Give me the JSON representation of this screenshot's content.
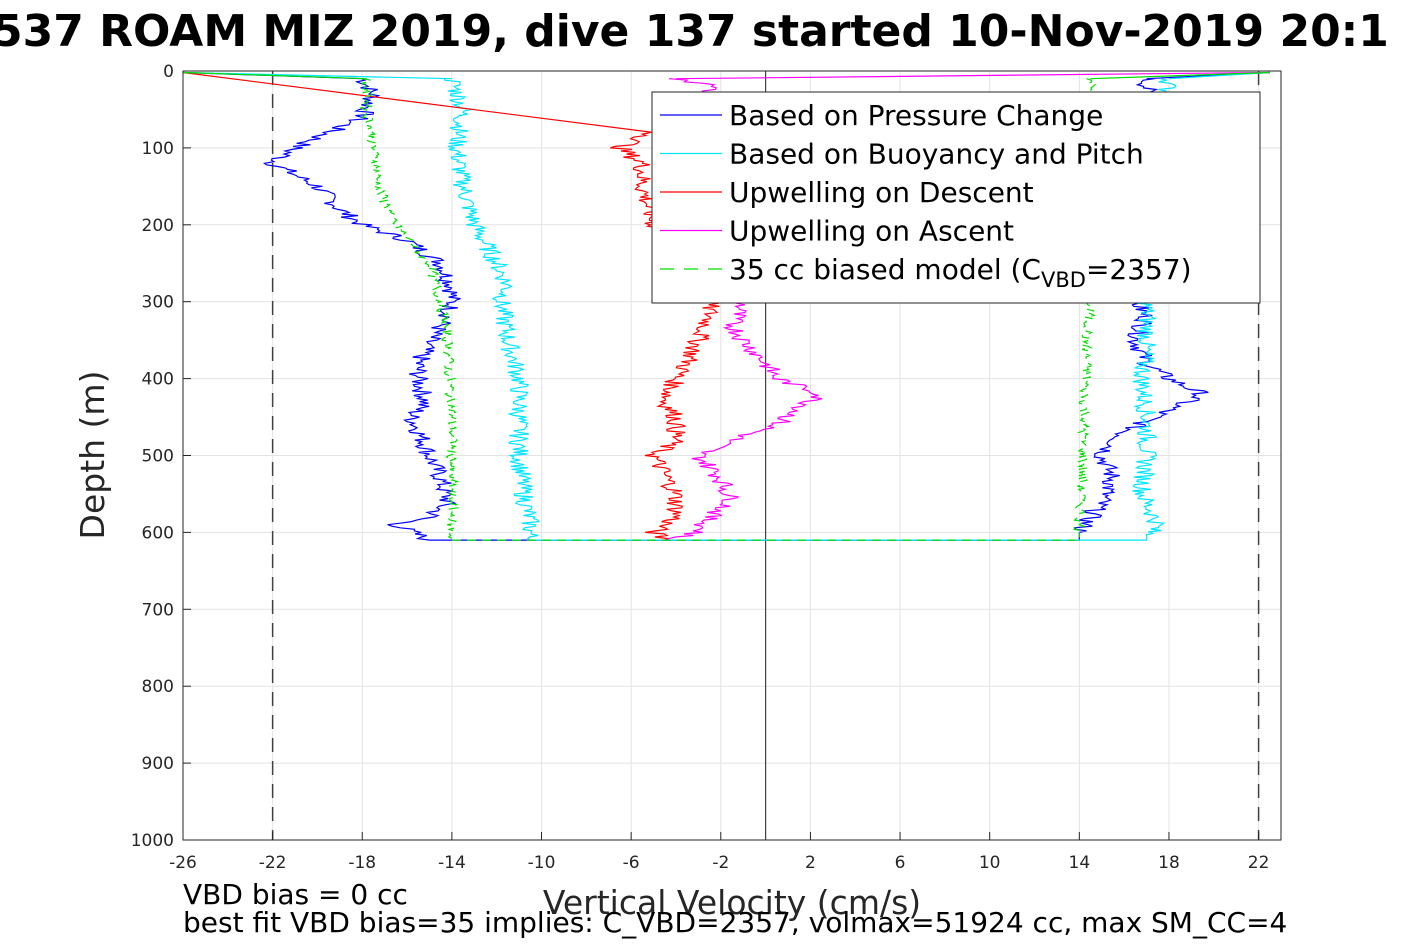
{
  "chart_data": {
    "type": "line",
    "title": "537 ROAM MIZ 2019, dive 137 started 10-Nov-2019 20:1",
    "xlabel": "Vertical Velocity (cm/s)",
    "ylabel": "Depth (m)",
    "xlim": [
      -26,
      23
    ],
    "ylim": [
      0,
      1000
    ],
    "y_reversed": true,
    "grid": true,
    "x_ticks": [
      -26,
      -22,
      -18,
      -14,
      -10,
      -6,
      -2,
      2,
      6,
      10,
      14,
      18,
      22
    ],
    "y_ticks": [
      0,
      100,
      200,
      300,
      400,
      500,
      600,
      700,
      800,
      900,
      1000
    ],
    "reference_lines": {
      "dashed_x": [
        -22,
        22
      ],
      "solid_x": [
        0
      ]
    },
    "legend_position": "top-right",
    "legend": [
      {
        "name": "Based on Pressure Change",
        "color": "#0000ff",
        "dash": "solid"
      },
      {
        "name": "Based on Buoyancy and Pitch",
        "color": "#00e5ff",
        "dash": "solid"
      },
      {
        "name": "Upwelling on Descent",
        "color": "#ff0000",
        "dash": "solid"
      },
      {
        "name": "Upwelling on Ascent",
        "color": "#ff00ff",
        "dash": "solid"
      },
      {
        "name_prefix": "35 cc biased model (C",
        "name_sub": "VBD",
        "name_suffix": "=2357)",
        "color": "#00dd00",
        "dash": "dashed"
      }
    ],
    "series": [
      {
        "name": "Based on Pressure Change",
        "color": "#0000ff",
        "descent": {
          "depth": [
            10,
            30,
            60,
            80,
            100,
            120,
            150,
            180,
            200,
            220,
            250,
            280,
            300,
            320,
            350,
            380,
            400,
            430,
            450,
            480,
            500,
            530,
            560,
            580,
            590,
            610
          ],
          "velocity": [
            -18,
            -17.5,
            -18,
            -19.5,
            -21,
            -22,
            -20,
            -19,
            -18,
            -16,
            -14.5,
            -14,
            -14,
            -14.2,
            -15,
            -15.5,
            -15.5,
            -15.2,
            -15.8,
            -15.3,
            -15,
            -14.5,
            -14.2,
            -15,
            -16.5,
            -15
          ]
        },
        "ascent": {
          "depth": [
            10,
            40,
            100,
            200,
            300,
            320,
            350,
            380,
            400,
            420,
            440,
            470,
            500,
            530,
            560,
            580,
            600
          ],
          "velocity": [
            17,
            17,
            17,
            17,
            16.5,
            17,
            16.5,
            17,
            18,
            19.5,
            18,
            16,
            15,
            15.5,
            15,
            14.5,
            14
          ]
        }
      },
      {
        "name": "Based on Buoyancy and Pitch",
        "color": "#00e5ff",
        "descent": {
          "depth": [
            10,
            50,
            100,
            150,
            200,
            250,
            280,
            300,
            350,
            400,
            450,
            500,
            550,
            590,
            610
          ],
          "velocity": [
            -14,
            -13.5,
            -13.8,
            -13.5,
            -13,
            -12,
            -11.5,
            -11.8,
            -11.5,
            -11,
            -11,
            -11,
            -10.8,
            -10.5,
            -10.5
          ]
        },
        "ascent": {
          "depth": [
            10,
            100,
            200,
            300,
            350,
            400,
            450,
            500,
            550,
            590,
            605
          ],
          "velocity": [
            18,
            17.5,
            17.5,
            17,
            17,
            16.8,
            17,
            17,
            16.8,
            17.5,
            17
          ]
        }
      },
      {
        "name": "Upwelling on Descent",
        "color": "#ff0000",
        "descent": {
          "depth": [
            80,
            100,
            120,
            150,
            200,
            300,
            320,
            350,
            380,
            400,
            430,
            450,
            480,
            500,
            550,
            580,
            600,
            610
          ],
          "velocity": [
            -5,
            -6.5,
            -5.5,
            -5.5,
            -5,
            -2.5,
            -2.5,
            -3,
            -3.5,
            -4,
            -4.5,
            -4,
            -4,
            -5,
            -4,
            -4,
            -5,
            -4.5
          ]
        }
      },
      {
        "name": "Upwelling on Ascent",
        "color": "#ff00ff",
        "ascent": {
          "depth": [
            10,
            20,
            40,
            300,
            330,
            350,
            380,
            400,
            420,
            440,
            460,
            480,
            500,
            530,
            560,
            580,
            600,
            610
          ],
          "velocity": [
            -4,
            -2,
            -4,
            -1,
            -1.5,
            -1,
            0,
            0.5,
            2.5,
            1.5,
            0.5,
            -1.5,
            -3,
            -2,
            -1.5,
            -2.5,
            -3,
            -4.5
          ]
        }
      },
      {
        "name": "35 cc biased model (CVBD=2357)",
        "color": "#00dd00",
        "dash": "dashed",
        "descent": {
          "depth": [
            10,
            50,
            100,
            150,
            200,
            250,
            300,
            350,
            400,
            450,
            500,
            550,
            600,
            610
          ],
          "velocity": [
            -17.8,
            -17.8,
            -17.5,
            -17.3,
            -16.5,
            -15,
            -14.5,
            -14.2,
            -14.1,
            -14,
            -14,
            -14,
            -14,
            -14
          ]
        },
        "ascent": {
          "depth": [
            10,
            100,
            200,
            300,
            350,
            400,
            450,
            500,
            550,
            600
          ],
          "velocity": [
            14.5,
            14.5,
            14.5,
            14.5,
            14.3,
            14.3,
            14.2,
            14.2,
            14.1,
            14
          ]
        }
      }
    ],
    "footnotes": [
      "VBD bias = 0 cc",
      "best fit VBD bias=35 implies: C_VBD=2357, volmax=51924 cc, max SM_CC=4"
    ]
  }
}
